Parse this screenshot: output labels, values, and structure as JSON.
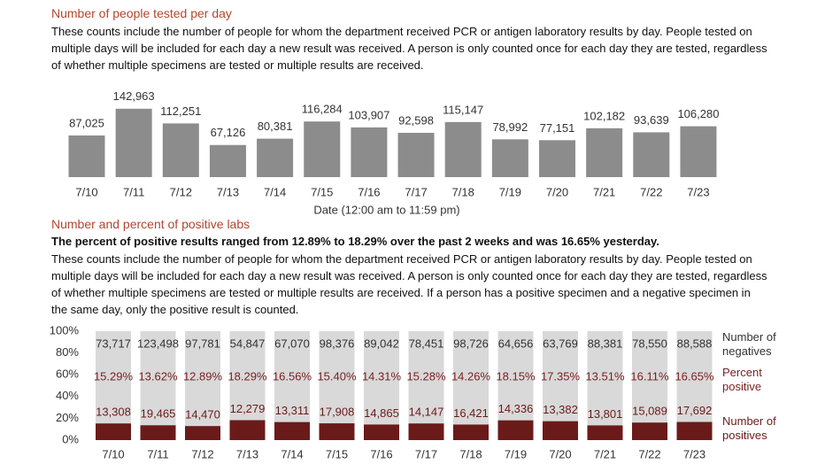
{
  "chart_data": [
    {
      "type": "bar",
      "title": "Number of people tested per day",
      "description": "These counts include the number of people for whom the department received PCR or antigen laboratory results by day. People tested on multiple days will be included for each day a new result was received. A person is only counted once for each day they are tested, regardless of whether multiple specimens are tested or multiple results are received.",
      "x_label": "Date (12:00 am to 11:59 pm)",
      "categories": [
        "7/10",
        "7/11",
        "7/12",
        "7/13",
        "7/14",
        "7/15",
        "7/16",
        "7/17",
        "7/18",
        "7/19",
        "7/20",
        "7/21",
        "7/22",
        "7/23"
      ],
      "values": [
        87025,
        142963,
        112251,
        67126,
        80381,
        116284,
        103907,
        92598,
        115147,
        78992,
        77151,
        102182,
        93639,
        106280
      ],
      "value_labels": [
        "87,025",
        "142,963",
        "112,251",
        "67,126",
        "80,381",
        "116,284",
        "103,907",
        "92,598",
        "115,147",
        "78,992",
        "77,151",
        "102,182",
        "93,639",
        "106,280"
      ],
      "color": "#8c8c8c",
      "ylim": [
        0,
        150000
      ]
    },
    {
      "type": "stacked_bar_100",
      "title": "Number and percent of positive labs",
      "headline": "The percent of positive results ranged from 12.89% to 18.29% over the past 2 weeks and was 16.65% yesterday.",
      "description": "These counts include the number of people for whom the department received PCR or antigen laboratory results by day. People tested on multiple days will be included for each day a new result was received. A person is only counted once for each day they are tested, regardless of whether multiple specimens are tested or multiple results are received. If a person has a positive specimen and a negative specimen in the same day, only the positive result is counted.",
      "categories": [
        "7/10",
        "7/11",
        "7/12",
        "7/13",
        "7/14",
        "7/15",
        "7/16",
        "7/17",
        "7/18",
        "7/19",
        "7/20",
        "7/21",
        "7/22",
        "7/23"
      ],
      "series": [
        {
          "name": "Number of positives",
          "color": "#6b1a1a",
          "values": [
            13308,
            19465,
            14470,
            12279,
            13311,
            17908,
            14865,
            14147,
            16421,
            14336,
            13382,
            13801,
            15089,
            17692
          ],
          "value_labels": [
            "13,308",
            "19,465",
            "14,470",
            "12,279",
            "13,311",
            "17,908",
            "14,865",
            "14,147",
            "16,421",
            "14,336",
            "13,382",
            "13,801",
            "15,089",
            "17,692"
          ]
        },
        {
          "name": "Percent positive",
          "color": "#7a2222",
          "values": [
            15.29,
            13.62,
            12.89,
            18.29,
            16.56,
            15.4,
            14.31,
            15.28,
            14.26,
            18.15,
            17.35,
            13.51,
            16.11,
            16.65
          ],
          "value_labels": [
            "15.29%",
            "13.62%",
            "12.89%",
            "18.29%",
            "16.56%",
            "15.40%",
            "14.31%",
            "15.28%",
            "14.26%",
            "18.15%",
            "17.35%",
            "13.51%",
            "16.11%",
            "16.65%"
          ]
        },
        {
          "name": "Number of negatives",
          "color": "#d9d9d9",
          "values": [
            73717,
            123498,
            97781,
            54847,
            67070,
            98376,
            89042,
            78451,
            98726,
            64656,
            63769,
            88381,
            78550,
            88588
          ],
          "value_labels": [
            "73,717",
            "123,498",
            "97,781",
            "54,847",
            "67,070",
            "98,376",
            "89,042",
            "78,451",
            "98,726",
            "64,656",
            "63,769",
            "88,381",
            "78,550",
            "88,588"
          ]
        }
      ],
      "ylim": [
        0,
        100
      ],
      "yticks": [
        {
          "value": 0,
          "label": "0%"
        },
        {
          "value": 20,
          "label": "20%"
        },
        {
          "value": 40,
          "label": "40%"
        },
        {
          "value": 60,
          "label": "60%"
        },
        {
          "value": 80,
          "label": "80%"
        },
        {
          "value": 100,
          "label": "100%"
        }
      ],
      "legend": "right"
    }
  ]
}
